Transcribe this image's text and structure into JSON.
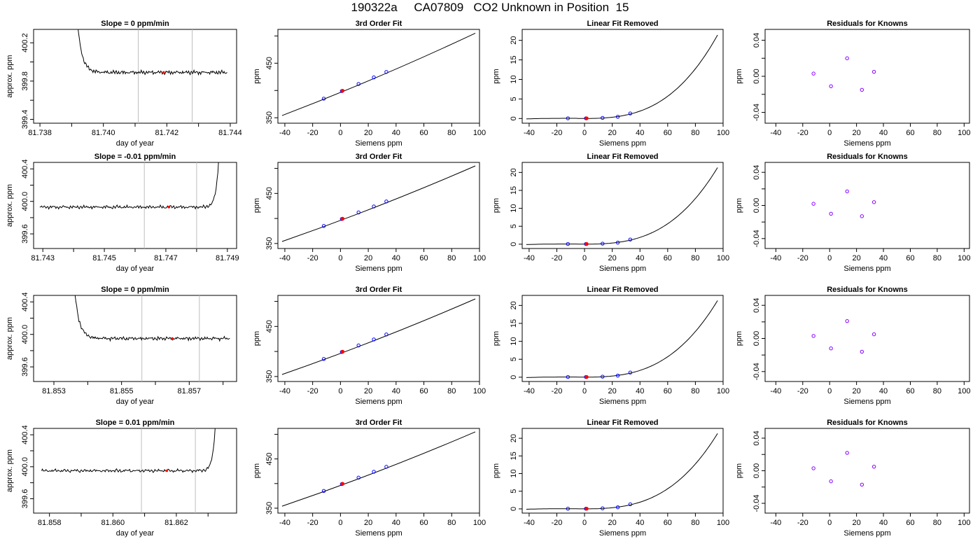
{
  "page": {
    "title": "190322a     CA07809   CO2 Unknown in Position  15"
  },
  "colors": {
    "line": "#000000",
    "marker_red": "#ff0000",
    "marker_blue": "#0000ff",
    "marker_purple": "#8800ff",
    "vline": "#bebebe"
  },
  "chart_data": [
    {
      "type": "line",
      "row": 0,
      "col": 0,
      "title": "Slope =  0  ppm/min",
      "xlabel": "day of year",
      "ylabel": "approx. ppm",
      "xlim": [
        81.7378,
        81.7442
      ],
      "ylim": [
        399.36,
        400.34
      ],
      "xticks": [
        81.738,
        81.739,
        81.74,
        81.741,
        81.742,
        81.743,
        81.744
      ],
      "xticklabels": [
        "81.738",
        "",
        "81.740",
        "",
        "81.742",
        "",
        "81.744"
      ],
      "yticks": [
        399.4,
        399.6,
        399.8,
        400.0,
        400.2
      ],
      "yticklabels": [
        "399.4",
        "",
        "399.8",
        "",
        "400.2"
      ],
      "vlines": [
        81.7411,
        81.7428
      ],
      "series": {
        "x_start": 81.73915,
        "x_end": 81.7439,
        "plateau": 399.89,
        "spike_start": 400.55,
        "spike_direction": "start",
        "wiggle": [
          0.0,
          0.01,
          -0.01,
          0.005,
          0.0,
          -0.01,
          0.01,
          0.0,
          -0.005,
          0.01,
          0.0,
          -0.01,
          0.005,
          0.01,
          -0.005,
          0.0,
          0.01,
          -0.01,
          0.0,
          0.005
        ]
      },
      "marker": {
        "x": 81.7419,
        "y": 399.89
      }
    },
    {
      "type": "line",
      "row": 0,
      "col": 1,
      "title": "3rd Order Fit",
      "xlabel": "Siemens ppm",
      "ylabel": "ppm",
      "xlim": [
        -45,
        100
      ],
      "ylim": [
        340,
        512
      ],
      "xticks": [
        -40,
        -20,
        0,
        20,
        40,
        60,
        80,
        100
      ],
      "yticks": [
        350,
        400,
        450,
        500
      ],
      "yticklabels": [
        "350",
        "",
        "450",
        ""
      ],
      "fit": {
        "x0": -42,
        "y0": 354,
        "x1": 97,
        "y1": 505,
        "curve": 12
      },
      "knowns": [
        {
          "x": -12,
          "y": 385
        },
        {
          "x": 1,
          "y": 399
        },
        {
          "x": 13,
          "y": 412
        },
        {
          "x": 24,
          "y": 424
        },
        {
          "x": 33,
          "y": 434
        }
      ],
      "unknown": {
        "x": 1.5,
        "y": 399.5
      }
    },
    {
      "type": "line",
      "row": 0,
      "col": 2,
      "title": "Linear Fit Removed",
      "xlabel": "Siemens ppm",
      "ylabel": "ppm",
      "xlim": [
        -45,
        100
      ],
      "ylim": [
        -1.2,
        22.8
      ],
      "xticks": [
        -40,
        -20,
        0,
        20,
        40,
        60,
        80,
        100
      ],
      "yticks": [
        0,
        5,
        10,
        15,
        20
      ],
      "cubic_ref": {
        "x": 97,
        "y": 22
      },
      "knowns": [
        {
          "x": -12,
          "y": 0.05
        },
        {
          "x": 1,
          "y": 0.05
        },
        {
          "x": 13,
          "y": 0.15
        },
        {
          "x": 24,
          "y": 0.45
        },
        {
          "x": 33,
          "y": 1.3
        }
      ],
      "unknown": {
        "x": 1.5,
        "y": 0.05
      }
    },
    {
      "type": "scatter",
      "row": 0,
      "col": 3,
      "title": "Residuals for Knowns",
      "xlabel": "Siemens ppm",
      "ylabel": "ppm",
      "xlim": [
        -48,
        104
      ],
      "ylim": [
        -0.052,
        0.052
      ],
      "xticks": [
        -40,
        -20,
        0,
        20,
        40,
        60,
        80,
        100
      ],
      "yticks": [
        -0.04,
        -0.02,
        0.0,
        0.02,
        0.04
      ],
      "yticklabels": [
        "-0.04",
        "",
        "0.00",
        "",
        "0.04"
      ],
      "points": [
        {
          "x": -12,
          "y": 0.003
        },
        {
          "x": 1,
          "y": -0.011
        },
        {
          "x": 13,
          "y": 0.02
        },
        {
          "x": 24,
          "y": -0.015
        },
        {
          "x": 33,
          "y": 0.005
        }
      ]
    },
    {
      "type": "line",
      "row": 1,
      "col": 0,
      "title": "Slope =  -0.01  ppm/min",
      "xlabel": "day of year",
      "ylabel": "approx. ppm",
      "xlim": [
        81.7427,
        81.7493
      ],
      "ylim": [
        399.42,
        400.48
      ],
      "xticks": [
        81.743,
        81.744,
        81.745,
        81.746,
        81.747,
        81.748,
        81.749
      ],
      "xticklabels": [
        "81.743",
        "",
        "81.745",
        "",
        "81.747",
        "",
        "81.749"
      ],
      "yticks": [
        399.6,
        399.8,
        400.0,
        400.2,
        400.4
      ],
      "yticklabels": [
        "399.6",
        "",
        "400.0",
        "",
        "400.4"
      ],
      "vlines": [
        81.7463,
        81.748
      ],
      "series": {
        "x_start": 81.7429,
        "x_end": 81.74875,
        "plateau": 399.93,
        "spike_end": 400.8,
        "spike_direction": "end",
        "wiggle": [
          0.0,
          -0.01,
          0.01,
          0.0,
          -0.01,
          0.005,
          0.01,
          -0.005,
          0.0,
          0.01,
          -0.01,
          0.0,
          0.005,
          -0.01,
          0.01,
          0.0,
          -0.005,
          0.01,
          -0.01,
          0.0
        ]
      },
      "marker": {
        "x": 81.7471,
        "y": 399.93
      }
    },
    {
      "type": "line",
      "row": 1,
      "col": 1,
      "title": "3rd Order Fit",
      "xlabel": "Siemens ppm",
      "ylabel": "ppm",
      "xlim": [
        -45,
        100
      ],
      "ylim": [
        340,
        512
      ],
      "xticks": [
        -40,
        -20,
        0,
        20,
        40,
        60,
        80,
        100
      ],
      "yticks": [
        350,
        400,
        450,
        500
      ],
      "yticklabels": [
        "350",
        "",
        "450",
        ""
      ],
      "fit": {
        "x0": -42,
        "y0": 354,
        "x1": 97,
        "y1": 505,
        "curve": 12
      },
      "knowns": [
        {
          "x": -12,
          "y": 385
        },
        {
          "x": 1,
          "y": 399
        },
        {
          "x": 13,
          "y": 412
        },
        {
          "x": 24,
          "y": 424
        },
        {
          "x": 33,
          "y": 434
        }
      ],
      "unknown": {
        "x": 1.5,
        "y": 399.5
      }
    },
    {
      "type": "line",
      "row": 1,
      "col": 2,
      "title": "Linear Fit Removed",
      "xlabel": "Siemens ppm",
      "ylabel": "ppm",
      "xlim": [
        -45,
        100
      ],
      "ylim": [
        -1.2,
        22.8
      ],
      "xticks": [
        -40,
        -20,
        0,
        20,
        40,
        60,
        80,
        100
      ],
      "yticks": [
        0,
        5,
        10,
        15,
        20
      ],
      "cubic_ref": {
        "x": 97,
        "y": 22
      },
      "knowns": [
        {
          "x": -12,
          "y": 0.05
        },
        {
          "x": 1,
          "y": 0.05
        },
        {
          "x": 13,
          "y": 0.15
        },
        {
          "x": 24,
          "y": 0.45
        },
        {
          "x": 33,
          "y": 1.3
        }
      ],
      "unknown": {
        "x": 1.5,
        "y": 0.05
      }
    },
    {
      "type": "scatter",
      "row": 1,
      "col": 3,
      "title": "Residuals for Knowns",
      "xlabel": "Siemens ppm",
      "ylabel": "ppm",
      "xlim": [
        -48,
        104
      ],
      "ylim": [
        -0.052,
        0.052
      ],
      "xticks": [
        -40,
        -20,
        0,
        20,
        40,
        60,
        80,
        100
      ],
      "yticks": [
        -0.04,
        -0.02,
        0.0,
        0.02,
        0.04
      ],
      "yticklabels": [
        "-0.04",
        "",
        "0.00",
        "",
        "0.04"
      ],
      "points": [
        {
          "x": -12,
          "y": 0.002
        },
        {
          "x": 1,
          "y": -0.01
        },
        {
          "x": 13,
          "y": 0.017
        },
        {
          "x": 24,
          "y": -0.013
        },
        {
          "x": 33,
          "y": 0.004
        }
      ]
    },
    {
      "type": "line",
      "row": 2,
      "col": 0,
      "title": "Slope =  0  ppm/min",
      "xlabel": "day of year",
      "ylabel": "approx. ppm",
      "xlim": [
        81.8524,
        81.8584
      ],
      "ylim": [
        399.42,
        400.48
      ],
      "xticks": [
        81.853,
        81.854,
        81.855,
        81.856,
        81.857,
        81.858
      ],
      "xticklabels": [
        "81.853",
        "",
        "81.855",
        "",
        "81.857",
        ""
      ],
      "yticks": [
        399.6,
        399.8,
        400.0,
        400.2,
        400.4
      ],
      "yticklabels": [
        "399.6",
        "",
        "400.0",
        "",
        "400.4"
      ],
      "vlines": [
        81.8556,
        81.8573
      ],
      "series": {
        "x_start": 81.85358,
        "x_end": 81.8582,
        "plateau": 399.95,
        "spike_start": 400.7,
        "spike_direction": "start",
        "wiggle": [
          0.0,
          0.005,
          -0.01,
          0.0,
          0.01,
          -0.005,
          0.0,
          -0.02,
          0.01,
          0.0,
          -0.01,
          0.005,
          0.0,
          0.01,
          -0.005,
          0.0,
          0.005,
          -0.01,
          0.0,
          0.01
        ]
      },
      "marker": {
        "x": 81.8565,
        "y": 399.95
      }
    },
    {
      "type": "line",
      "row": 2,
      "col": 1,
      "title": "3rd Order Fit",
      "xlabel": "Siemens ppm",
      "ylabel": "ppm",
      "xlim": [
        -45,
        100
      ],
      "ylim": [
        340,
        512
      ],
      "xticks": [
        -40,
        -20,
        0,
        20,
        40,
        60,
        80,
        100
      ],
      "yticks": [
        350,
        400,
        450,
        500
      ],
      "yticklabels": [
        "350",
        "",
        "450",
        ""
      ],
      "fit": {
        "x0": -42,
        "y0": 354,
        "x1": 97,
        "y1": 505,
        "curve": 12
      },
      "knowns": [
        {
          "x": -12,
          "y": 385
        },
        {
          "x": 1,
          "y": 399
        },
        {
          "x": 13,
          "y": 412
        },
        {
          "x": 24,
          "y": 424
        },
        {
          "x": 33,
          "y": 434
        }
      ],
      "unknown": {
        "x": 1.5,
        "y": 399.5
      }
    },
    {
      "type": "line",
      "row": 2,
      "col": 2,
      "title": "Linear Fit Removed",
      "xlabel": "Siemens ppm",
      "ylabel": "ppm",
      "xlim": [
        -45,
        100
      ],
      "ylim": [
        -1.2,
        22.8
      ],
      "xticks": [
        -40,
        -20,
        0,
        20,
        40,
        60,
        80,
        100
      ],
      "yticks": [
        0,
        5,
        10,
        15,
        20
      ],
      "cubic_ref": {
        "x": 97,
        "y": 22
      },
      "knowns": [
        {
          "x": -12,
          "y": 0.05
        },
        {
          "x": 1,
          "y": 0.05
        },
        {
          "x": 13,
          "y": 0.15
        },
        {
          "x": 24,
          "y": 0.45
        },
        {
          "x": 33,
          "y": 1.3
        }
      ],
      "unknown": {
        "x": 1.5,
        "y": 0.05
      }
    },
    {
      "type": "scatter",
      "row": 2,
      "col": 3,
      "title": "Residuals for Knowns",
      "xlabel": "Siemens ppm",
      "ylabel": "ppm",
      "xlim": [
        -48,
        104
      ],
      "ylim": [
        -0.052,
        0.052
      ],
      "xticks": [
        -40,
        -20,
        0,
        20,
        40,
        60,
        80,
        100
      ],
      "yticks": [
        -0.04,
        -0.02,
        0.0,
        0.02,
        0.04
      ],
      "yticklabels": [
        "-0.04",
        "",
        "0.00",
        "",
        "0.04"
      ],
      "points": [
        {
          "x": -12,
          "y": 0.003
        },
        {
          "x": 1,
          "y": -0.012
        },
        {
          "x": 13,
          "y": 0.021
        },
        {
          "x": 24,
          "y": -0.016
        },
        {
          "x": 33,
          "y": 0.005
        }
      ]
    },
    {
      "type": "line",
      "row": 3,
      "col": 0,
      "title": "Slope =  0.01  ppm/min",
      "xlabel": "day of year",
      "ylabel": "approx. ppm",
      "xlim": [
        81.8575,
        81.8639
      ],
      "ylim": [
        399.42,
        400.48
      ],
      "xticks": [
        81.858,
        81.859,
        81.86,
        81.861,
        81.862,
        81.863
      ],
      "xticklabels": [
        "81.858",
        "",
        "81.860",
        "",
        "81.862",
        ""
      ],
      "yticks": [
        399.6,
        399.8,
        400.0,
        400.2,
        400.4
      ],
      "yticklabels": [
        "399.6",
        "",
        "400.0",
        "",
        "400.4"
      ],
      "vlines": [
        81.8609,
        81.8626
      ],
      "series": {
        "x_start": 81.85775,
        "x_end": 81.86325,
        "plateau": 399.95,
        "spike_end": 400.7,
        "spike_direction": "end",
        "wiggle": [
          0.0,
          0.01,
          -0.005,
          0.0,
          -0.01,
          0.005,
          0.01,
          0.0,
          -0.01,
          0.0,
          0.01,
          -0.005,
          0.0,
          -0.01,
          0.005,
          0.0,
          0.01,
          -0.005,
          0.0,
          0.005
        ]
      },
      "marker": {
        "x": 81.8617,
        "y": 399.95
      }
    },
    {
      "type": "line",
      "row": 3,
      "col": 1,
      "title": "3rd Order Fit",
      "xlabel": "Siemens ppm",
      "ylabel": "ppm",
      "xlim": [
        -45,
        100
      ],
      "ylim": [
        340,
        512
      ],
      "xticks": [
        -40,
        -20,
        0,
        20,
        40,
        60,
        80,
        100
      ],
      "yticks": [
        350,
        400,
        450,
        500
      ],
      "yticklabels": [
        "350",
        "",
        "450",
        ""
      ],
      "fit": {
        "x0": -42,
        "y0": 354,
        "x1": 97,
        "y1": 505,
        "curve": 12
      },
      "knowns": [
        {
          "x": -12,
          "y": 385
        },
        {
          "x": 1,
          "y": 399
        },
        {
          "x": 13,
          "y": 412
        },
        {
          "x": 24,
          "y": 424
        },
        {
          "x": 33,
          "y": 434
        }
      ],
      "unknown": {
        "x": 1.5,
        "y": 399.5
      }
    },
    {
      "type": "line",
      "row": 3,
      "col": 2,
      "title": "Linear Fit Removed",
      "xlabel": "Siemens ppm",
      "ylabel": "ppm",
      "xlim": [
        -45,
        100
      ],
      "ylim": [
        -1.2,
        22.8
      ],
      "xticks": [
        -40,
        -20,
        0,
        20,
        40,
        60,
        80,
        100
      ],
      "yticks": [
        0,
        5,
        10,
        15,
        20
      ],
      "cubic_ref": {
        "x": 97,
        "y": 22
      },
      "knowns": [
        {
          "x": -12,
          "y": 0.05
        },
        {
          "x": 1,
          "y": 0.05
        },
        {
          "x": 13,
          "y": 0.15
        },
        {
          "x": 24,
          "y": 0.45
        },
        {
          "x": 33,
          "y": 1.3
        }
      ],
      "unknown": {
        "x": 1.5,
        "y": 0.05
      }
    },
    {
      "type": "scatter",
      "row": 3,
      "col": 3,
      "title": "Residuals for Knowns",
      "xlabel": "Siemens ppm",
      "ylabel": "ppm",
      "xlim": [
        -48,
        104
      ],
      "ylim": [
        -0.052,
        0.052
      ],
      "xticks": [
        -40,
        -20,
        0,
        20,
        40,
        60,
        80,
        100
      ],
      "yticks": [
        -0.04,
        -0.02,
        0.0,
        0.02,
        0.04
      ],
      "yticklabels": [
        "-0.04",
        "",
        "0.00",
        "",
        "0.04"
      ],
      "points": [
        {
          "x": -12,
          "y": 0.003
        },
        {
          "x": 1,
          "y": -0.013
        },
        {
          "x": 13,
          "y": 0.022
        },
        {
          "x": 24,
          "y": -0.017
        },
        {
          "x": 33,
          "y": 0.005
        }
      ]
    }
  ]
}
